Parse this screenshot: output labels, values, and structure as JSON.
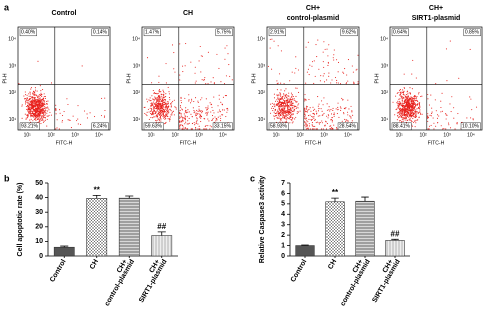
{
  "flow": {
    "label": "a",
    "x_label": "FITC-H",
    "y_label": "PI-H",
    "ticks": [
      "10¹",
      "10²",
      "10³",
      "10⁴"
    ],
    "panels": [
      {
        "title": [
          "Control"
        ],
        "quadrants": [
          {
            "value": 0.4,
            "label": "0.40%"
          },
          {
            "value": 0.14,
            "label": "0.14%"
          },
          {
            "value": 93.21,
            "label": "93.21%"
          },
          {
            "value": 6.24,
            "label": "6.24%"
          }
        ]
      },
      {
        "title": [
          "CH"
        ],
        "quadrants": [
          {
            "value": 1.47,
            "label": "1.47%"
          },
          {
            "value": 5.75,
            "label": "5.75%"
          },
          {
            "value": 59.63,
            "label": "59.63%"
          },
          {
            "value": 33.15,
            "label": "33.15%"
          }
        ]
      },
      {
        "title": [
          "CH+",
          "control-plasmid"
        ],
        "quadrants": [
          {
            "value": 2.91,
            "label": "2.91%"
          },
          {
            "value": 9.62,
            "label": "9.62%"
          },
          {
            "value": 58.93,
            "label": "58.93%"
          },
          {
            "value": 28.54,
            "label": "28.54%"
          }
        ]
      },
      {
        "title": [
          "CH+",
          "SIRT1-plasmid"
        ],
        "quadrants": [
          {
            "value": 0.64,
            "label": "0.64%"
          },
          {
            "value": 0.85,
            "label": "0.85%"
          },
          {
            "value": 88.41,
            "label": "88.41%"
          },
          {
            "value": 10.1,
            "label": "10.10%"
          }
        ]
      }
    ]
  },
  "chart_data": [
    {
      "type": "bar",
      "label": "b",
      "y_label": "Cell apoptotic rate (%)",
      "categories": [
        [
          "Control"
        ],
        [
          "CH"
        ],
        [
          "CH+",
          "control-plasmid"
        ],
        [
          "CH+",
          "SIRT1-plasmid"
        ]
      ],
      "values": [
        6,
        39.5,
        39.6,
        14
      ],
      "errors": [
        0.8,
        2,
        1.5,
        2.5
      ],
      "colors": [
        "#555555",
        "#666666",
        "#666666",
        "#b0b0b0"
      ],
      "patterns": [
        "solid",
        "crosshatch",
        "horizontal",
        "vertical"
      ],
      "annotations": [
        {
          "index": 1,
          "text": "**"
        },
        {
          "index": 3,
          "text": "##"
        }
      ],
      "ylim": [
        0,
        50
      ],
      "yticks": [
        0,
        10,
        20,
        30,
        40,
        50
      ]
    },
    {
      "type": "bar",
      "label": "c",
      "y_label": "Relative Caspase3 activity",
      "categories": [
        [
          "Control"
        ],
        [
          "CH"
        ],
        [
          "CH+",
          "control-plasmid"
        ],
        [
          "CH+",
          "SIRT1-plasmid"
        ]
      ],
      "values": [
        1.0,
        5.2,
        5.25,
        1.5
      ],
      "errors": [
        0.05,
        0.35,
        0.4,
        0.1
      ],
      "colors": [
        "#555555",
        "#666666",
        "#666666",
        "#b0b0b0"
      ],
      "patterns": [
        "solid",
        "crosshatch",
        "horizontal",
        "vertical"
      ],
      "annotations": [
        {
          "index": 1,
          "text": "**"
        },
        {
          "index": 3,
          "text": "##"
        }
      ],
      "ylim": [
        0,
        7
      ],
      "yticks": [
        0,
        1,
        2,
        3,
        4,
        5,
        6,
        7
      ]
    }
  ]
}
